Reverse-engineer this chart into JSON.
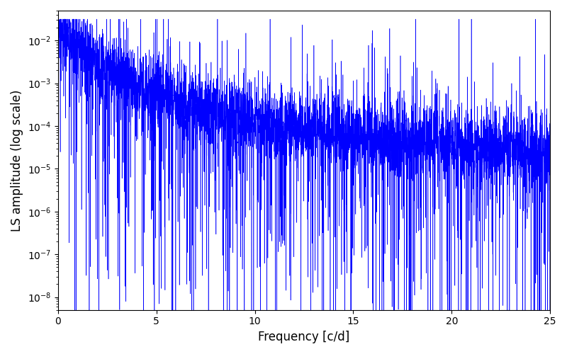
{
  "xlabel": "Frequency [c/d]",
  "ylabel": "LS amplitude (log scale)",
  "xlim": [
    0,
    25
  ],
  "ylim": [
    5e-09,
    0.05
  ],
  "line_color": "#0000ff",
  "line_width": 0.4,
  "bg_color": "#ffffff",
  "figsize": [
    8.0,
    5.0
  ],
  "dpi": 100,
  "seed": 42,
  "freq_max": 25.0
}
